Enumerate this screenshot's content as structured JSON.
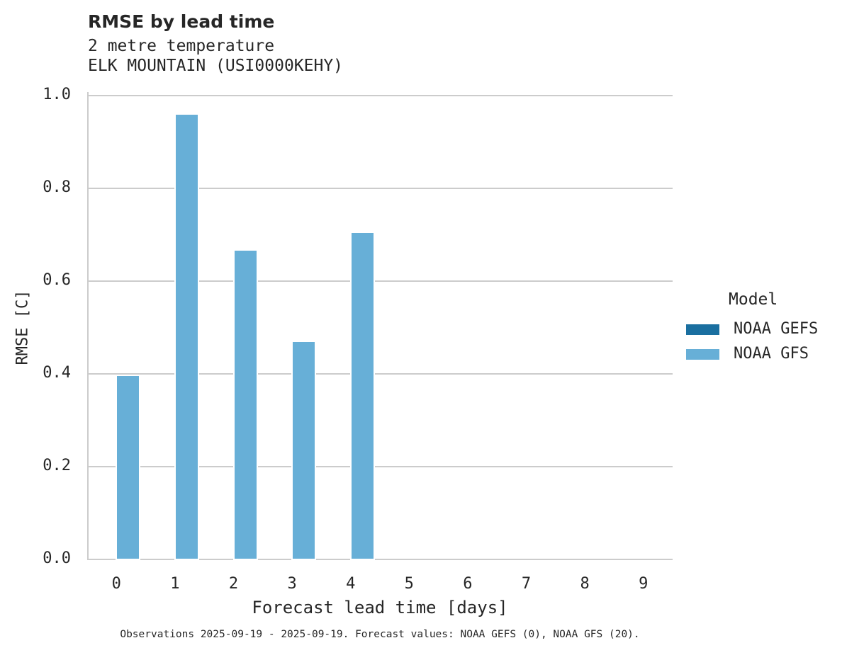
{
  "chart": {
    "title": "RMSE by lead time",
    "subtitle_1": "2 metre temperature",
    "subtitle_2": "ELK MOUNTAIN (USI0000KEHY)",
    "xlabel": "Forecast lead time [days]",
    "ylabel": "RMSE [C]",
    "yticks": [
      "0.0",
      "0.2",
      "0.4",
      "0.6",
      "0.8",
      "1.0"
    ],
    "xticks": [
      "0",
      "1",
      "2",
      "3",
      "4",
      "5",
      "6",
      "7",
      "8",
      "9"
    ],
    "footnote": "Observations 2025-09-19 - 2025-09-19. Forecast values: NOAA GEFS (0), NOAA GFS (20).",
    "legend": {
      "title": "Model",
      "items": [
        {
          "label": "NOAA GEFS",
          "color": "#1a6fa0"
        },
        {
          "label": "NOAA GFS",
          "color": "#67afd7"
        }
      ]
    }
  },
  "chart_data": {
    "type": "bar",
    "title": "RMSE by lead time",
    "subtitle": "2 metre temperature — ELK MOUNTAIN (USI0000KEHY)",
    "xlabel": "Forecast lead time [days]",
    "ylabel": "RMSE [C]",
    "categories": [
      "0",
      "1",
      "2",
      "3",
      "4",
      "5",
      "6",
      "7",
      "8",
      "9"
    ],
    "series": [
      {
        "name": "NOAA GEFS",
        "color": "#1a6fa0",
        "values": [
          null,
          null,
          null,
          null,
          null,
          null,
          null,
          null,
          null,
          null
        ]
      },
      {
        "name": "NOAA GFS",
        "color": "#67afd7",
        "values": [
          0.396,
          0.959,
          0.666,
          0.469,
          0.704,
          null,
          null,
          null,
          null,
          null
        ]
      }
    ],
    "ylim": [
      0,
      1.0
    ],
    "yticks": [
      0.0,
      0.2,
      0.4,
      0.6,
      0.8,
      1.0
    ],
    "grid": "horizontal",
    "legend_position": "right",
    "legend_title": "Model",
    "annotation": "Observations 2025-09-19 - 2025-09-19. Forecast values: NOAA GEFS (0), NOAA GFS (20)."
  }
}
